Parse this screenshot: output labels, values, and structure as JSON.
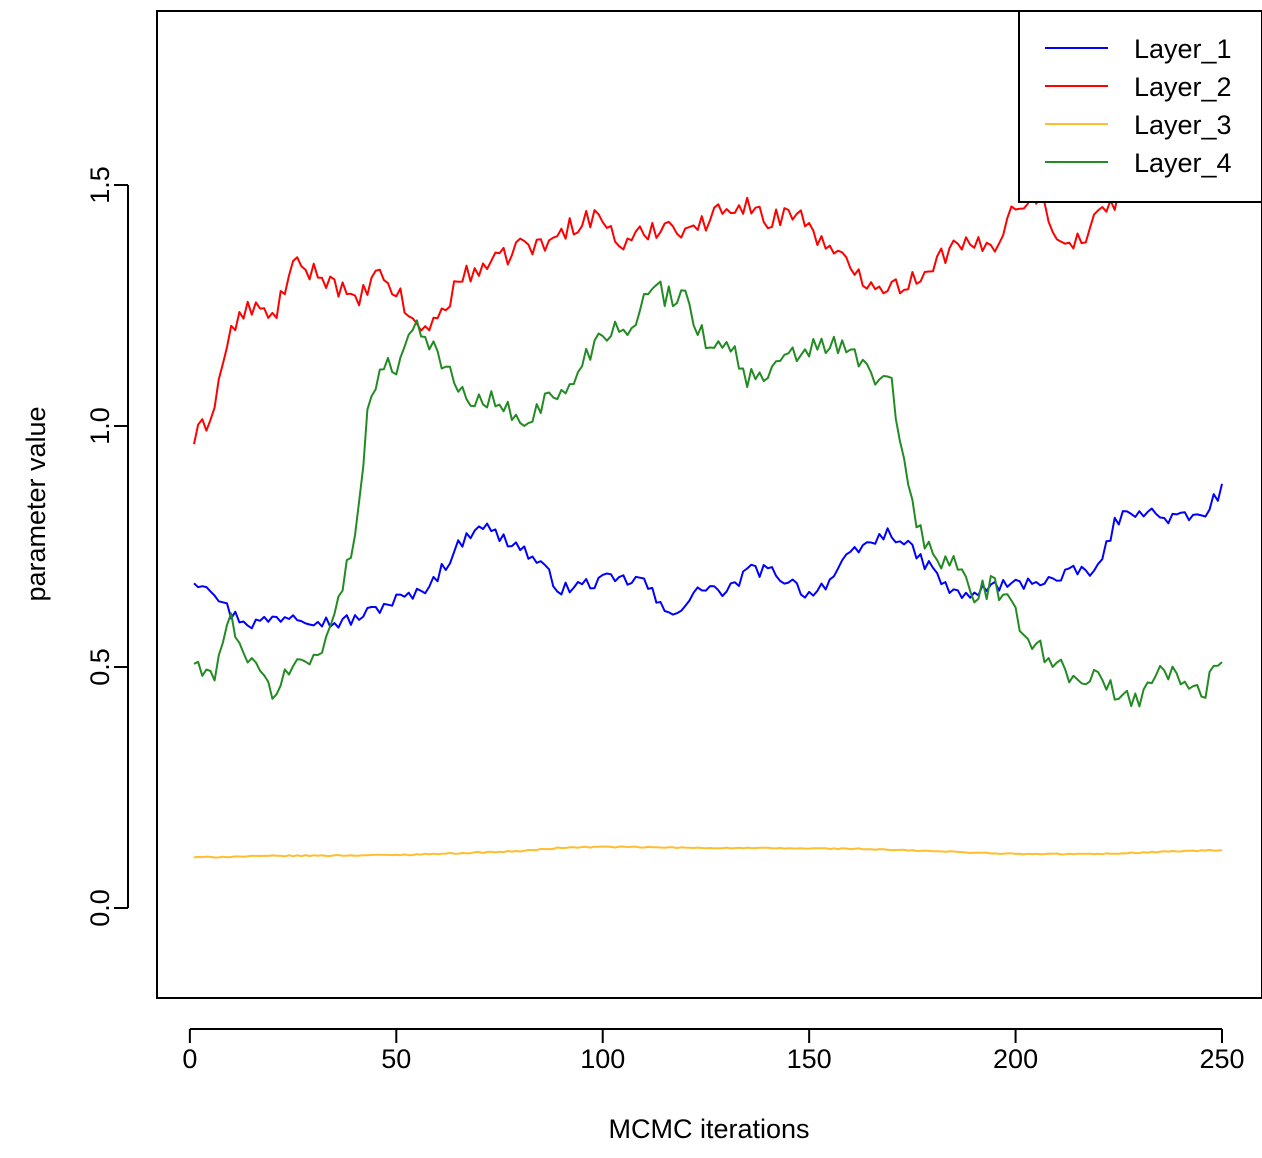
{
  "chart_data": {
    "type": "line",
    "title": "",
    "xlabel": "MCMC iterations",
    "ylabel": "parameter value",
    "xlim": [
      1,
      250
    ],
    "ylim": [
      -0.19,
      1.86
    ],
    "x_ticks": [
      0,
      50,
      100,
      150,
      200,
      250
    ],
    "x_tick_labels": [
      "0",
      "50",
      "100",
      "150",
      "200",
      "250"
    ],
    "y_ticks": [
      0.0,
      0.5,
      1.0,
      1.5
    ],
    "y_tick_labels": [
      "0.0",
      "0.5",
      "1.0",
      "1.5"
    ],
    "grid": false,
    "legend": {
      "position": "top-right"
    },
    "x": "1..250 (every MCMC iteration)",
    "series": [
      {
        "name": "Layer_1",
        "color": "#0000ff",
        "keypoints": [
          [
            1,
            0.68
          ],
          [
            5,
            0.67
          ],
          [
            10,
            0.61
          ],
          [
            15,
            0.59
          ],
          [
            20,
            0.6
          ],
          [
            25,
            0.61
          ],
          [
            30,
            0.6
          ],
          [
            35,
            0.59
          ],
          [
            40,
            0.6
          ],
          [
            45,
            0.62
          ],
          [
            50,
            0.64
          ],
          [
            55,
            0.65
          ],
          [
            60,
            0.69
          ],
          [
            65,
            0.75
          ],
          [
            70,
            0.8
          ],
          [
            75,
            0.77
          ],
          [
            80,
            0.75
          ],
          [
            85,
            0.71
          ],
          [
            90,
            0.66
          ],
          [
            95,
            0.67
          ],
          [
            100,
            0.68
          ],
          [
            105,
            0.68
          ],
          [
            110,
            0.68
          ],
          [
            115,
            0.61
          ],
          [
            120,
            0.63
          ],
          [
            125,
            0.67
          ],
          [
            130,
            0.65
          ],
          [
            135,
            0.7
          ],
          [
            140,
            0.7
          ],
          [
            145,
            0.68
          ],
          [
            150,
            0.65
          ],
          [
            155,
            0.68
          ],
          [
            160,
            0.73
          ],
          [
            165,
            0.76
          ],
          [
            170,
            0.78
          ],
          [
            175,
            0.74
          ],
          [
            180,
            0.7
          ],
          [
            185,
            0.65
          ],
          [
            190,
            0.65
          ],
          [
            195,
            0.67
          ],
          [
            200,
            0.67
          ],
          [
            205,
            0.68
          ],
          [
            210,
            0.68
          ],
          [
            215,
            0.7
          ],
          [
            220,
            0.7
          ],
          [
            224,
            0.8
          ],
          [
            230,
            0.83
          ],
          [
            235,
            0.81
          ],
          [
            240,
            0.81
          ],
          [
            245,
            0.81
          ],
          [
            250,
            0.87
          ]
        ]
      },
      {
        "name": "Layer_2",
        "color": "#ff0000",
        "keypoints": [
          [
            1,
            0.97
          ],
          [
            5,
            1.02
          ],
          [
            10,
            1.2
          ],
          [
            15,
            1.25
          ],
          [
            20,
            1.22
          ],
          [
            25,
            1.33
          ],
          [
            30,
            1.32
          ],
          [
            35,
            1.3
          ],
          [
            40,
            1.25
          ],
          [
            45,
            1.31
          ],
          [
            50,
            1.28
          ],
          [
            55,
            1.2
          ],
          [
            60,
            1.22
          ],
          [
            65,
            1.3
          ],
          [
            70,
            1.33
          ],
          [
            75,
            1.34
          ],
          [
            80,
            1.38
          ],
          [
            85,
            1.37
          ],
          [
            90,
            1.4
          ],
          [
            95,
            1.43
          ],
          [
            100,
            1.43
          ],
          [
            105,
            1.37
          ],
          [
            110,
            1.4
          ],
          [
            115,
            1.42
          ],
          [
            120,
            1.41
          ],
          [
            125,
            1.42
          ],
          [
            130,
            1.46
          ],
          [
            135,
            1.46
          ],
          [
            140,
            1.42
          ],
          [
            145,
            1.45
          ],
          [
            150,
            1.42
          ],
          [
            155,
            1.36
          ],
          [
            160,
            1.33
          ],
          [
            165,
            1.3
          ],
          [
            170,
            1.29
          ],
          [
            175,
            1.3
          ],
          [
            180,
            1.34
          ],
          [
            185,
            1.37
          ],
          [
            190,
            1.37
          ],
          [
            195,
            1.38
          ],
          [
            200,
            1.46
          ],
          [
            205,
            1.48
          ],
          [
            210,
            1.4
          ],
          [
            215,
            1.38
          ],
          [
            220,
            1.43
          ],
          [
            225,
            1.48
          ],
          [
            230,
            1.55
          ],
          [
            235,
            1.53
          ],
          [
            240,
            1.55
          ],
          [
            245,
            1.5
          ],
          [
            250,
            1.57
          ]
        ]
      },
      {
        "name": "Layer_3",
        "color": "#ffbe2e",
        "keypoints": [
          [
            1,
            0.105
          ],
          [
            20,
            0.108
          ],
          [
            50,
            0.11
          ],
          [
            70,
            0.115
          ],
          [
            80,
            0.118
          ],
          [
            90,
            0.125
          ],
          [
            100,
            0.127
          ],
          [
            120,
            0.125
          ],
          [
            140,
            0.124
          ],
          [
            160,
            0.123
          ],
          [
            180,
            0.118
          ],
          [
            200,
            0.112
          ],
          [
            220,
            0.112
          ],
          [
            240,
            0.118
          ],
          [
            250,
            0.12
          ]
        ]
      },
      {
        "name": "Layer_4",
        "color": "#228b22",
        "keypoints": [
          [
            1,
            0.51
          ],
          [
            5,
            0.47
          ],
          [
            10,
            0.6
          ],
          [
            15,
            0.5
          ],
          [
            20,
            0.45
          ],
          [
            25,
            0.5
          ],
          [
            30,
            0.52
          ],
          [
            35,
            0.6
          ],
          [
            38,
            0.7
          ],
          [
            40,
            0.78
          ],
          [
            43,
            1.02
          ],
          [
            45,
            1.1
          ],
          [
            50,
            1.13
          ],
          [
            55,
            1.22
          ],
          [
            60,
            1.15
          ],
          [
            65,
            1.07
          ],
          [
            70,
            1.05
          ],
          [
            75,
            1.05
          ],
          [
            80,
            1.0
          ],
          [
            85,
            1.05
          ],
          [
            90,
            1.06
          ],
          [
            95,
            1.13
          ],
          [
            100,
            1.2
          ],
          [
            105,
            1.2
          ],
          [
            110,
            1.25
          ],
          [
            113,
            1.3
          ],
          [
            115,
            1.27
          ],
          [
            120,
            1.27
          ],
          [
            125,
            1.17
          ],
          [
            130,
            1.18
          ],
          [
            135,
            1.1
          ],
          [
            140,
            1.1
          ],
          [
            145,
            1.14
          ],
          [
            150,
            1.16
          ],
          [
            155,
            1.17
          ],
          [
            160,
            1.15
          ],
          [
            165,
            1.11
          ],
          [
            170,
            1.08
          ],
          [
            172,
            0.97
          ],
          [
            175,
            0.83
          ],
          [
            180,
            0.72
          ],
          [
            185,
            0.72
          ],
          [
            190,
            0.65
          ],
          [
            195,
            0.67
          ],
          [
            200,
            0.6
          ],
          [
            205,
            0.55
          ],
          [
            210,
            0.5
          ],
          [
            215,
            0.48
          ],
          [
            220,
            0.48
          ],
          [
            225,
            0.43
          ],
          [
            230,
            0.44
          ],
          [
            235,
            0.5
          ],
          [
            240,
            0.47
          ],
          [
            245,
            0.44
          ],
          [
            250,
            0.52
          ]
        ]
      }
    ]
  }
}
